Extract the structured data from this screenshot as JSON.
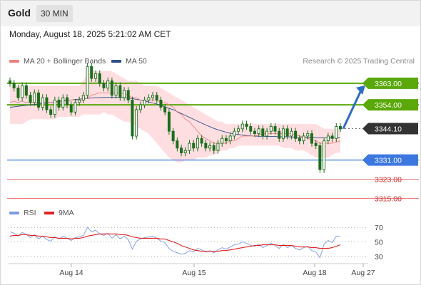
{
  "header": {
    "symbol": "Gold",
    "interval": "30 MIN"
  },
  "timestamp": "Monday, August 18, 2025 5:21:02 AM CET",
  "legend": {
    "ma20_label": "MA 20 + Bollinger Bands",
    "ma50_label": "MA 50",
    "rsi_label": "RSI",
    "rsi_ma_label": "9MA",
    "copyright": "Research © 2025 Trading Central"
  },
  "colors": {
    "ma20": "#f08080",
    "ma50": "#2d4f8c",
    "band_fill": "#ffd8dc",
    "candle": "#1c6e1c",
    "resistance": "#5aa80a",
    "support": "#3c78e0",
    "lower_support": "#f08080",
    "last_price": "#333333",
    "projection": "#2e6cc0",
    "rsi": "#7a9ae0",
    "rsi_ma": "#e02020"
  },
  "chart_data": [
    {
      "type": "candlestick",
      "title": "",
      "x_labels": [
        "Aug 14",
        "Aug 15",
        "Aug 18",
        "Aug 27"
      ],
      "ylim": [
        3311,
        3368
      ],
      "price_levels": [
        {
          "label": "3363.00",
          "value": 3363.0,
          "kind": "resistance"
        },
        {
          "label": "3354.00",
          "value": 3354.0,
          "kind": "resistance"
        },
        {
          "label": "3344.10",
          "value": 3344.1,
          "kind": "last_price"
        },
        {
          "label": "3331.00",
          "value": 3331.0,
          "kind": "support"
        },
        {
          "label": "3323.00",
          "value": 3323.0,
          "kind": "lower_support"
        },
        {
          "label": "3315.00",
          "value": 3315.0,
          "kind": "lower_support"
        }
      ],
      "close": [
        3363,
        3361,
        3357,
        3362,
        3358,
        3355,
        3359,
        3353,
        3357,
        3352,
        3350,
        3356,
        3353,
        3357,
        3354,
        3351,
        3355,
        3356,
        3358,
        3370,
        3365,
        3367,
        3363,
        3361,
        3364,
        3358,
        3362,
        3357,
        3360,
        3356,
        3341,
        3352,
        3354,
        3356,
        3357,
        3358,
        3356,
        3353,
        3351,
        3343,
        3339,
        3336,
        3334,
        3335,
        3338,
        3336,
        3340,
        3338,
        3336,
        3337,
        3335,
        3338,
        3340,
        3339,
        3341,
        3343,
        3344,
        3346,
        3345,
        3343,
        3342,
        3344,
        3341,
        3343,
        3345,
        3343,
        3340,
        3344,
        3341,
        3343,
        3340,
        3339,
        3341,
        3342,
        3338,
        3337,
        3327,
        3339,
        3341,
        3340,
        3345,
        3344
      ],
      "ma20": [
        3355,
        3355.5,
        3355,
        3355.5,
        3355,
        3355,
        3355,
        3355,
        3355,
        3355,
        3355,
        3355,
        3355,
        3356,
        3356,
        3356,
        3356,
        3356,
        3356,
        3357,
        3358,
        3358.5,
        3359,
        3359,
        3359,
        3359,
        3359,
        3359,
        3358.5,
        3358,
        3357,
        3357,
        3356,
        3356,
        3356,
        3356,
        3356,
        3355,
        3355,
        3354,
        3353,
        3351,
        3350,
        3348,
        3347,
        3345,
        3343,
        3341,
        3340,
        3339,
        3338,
        3338,
        3338,
        3338,
        3339,
        3339,
        3340,
        3341,
        3341,
        3341,
        3341,
        3341.5,
        3342,
        3342,
        3342,
        3342,
        3342,
        3342,
        3342,
        3342,
        3341.5,
        3341,
        3340.5,
        3340,
        3339.5,
        3339,
        3338,
        3338,
        3338,
        3338,
        3338.5,
        3339
      ],
      "ma50": [
        3353,
        3353.2,
        3353.4,
        3353.6,
        3353.8,
        3354,
        3354.2,
        3354.4,
        3354.6,
        3354.8,
        3355,
        3355.2,
        3355.4,
        3355.6,
        3355.8,
        3356,
        3356.2,
        3356.4,
        3356.5,
        3356.7,
        3356.9,
        3357,
        3357,
        3357.1,
        3357.1,
        3357.2,
        3357.2,
        3357.1,
        3357,
        3356.8,
        3356.6,
        3356.3,
        3356,
        3355.6,
        3355.2,
        3354.8,
        3354.3,
        3353.8,
        3353.2,
        3352.6,
        3352,
        3351.2,
        3350.4,
        3349.6,
        3348.8,
        3348,
        3347.2,
        3346.4,
        3345.6,
        3344.9,
        3344.2,
        3343.6,
        3343.1,
        3342.6,
        3342.2,
        3341.9,
        3341.6,
        3341.4,
        3341.2,
        3341.1,
        3341,
        3340.9,
        3340.9,
        3340.8,
        3340.8,
        3340.8,
        3340.7,
        3340.7,
        3340.7,
        3340.6,
        3340.6,
        3340.5,
        3340.5,
        3340.4,
        3340.4,
        3340.3,
        3340.3,
        3340.2,
        3340.2,
        3340.2,
        3340.2,
        3340.2
      ],
      "bb_upper": [
        3362,
        3362,
        3362,
        3362,
        3362,
        3362,
        3362,
        3362,
        3362,
        3362,
        3362,
        3362,
        3362,
        3362,
        3362,
        3362,
        3362,
        3362,
        3364,
        3367,
        3368,
        3368,
        3368,
        3368,
        3368,
        3368,
        3367,
        3366,
        3365,
        3364,
        3364,
        3364,
        3363,
        3362,
        3362,
        3362,
        3362,
        3361,
        3360,
        3359,
        3358,
        3357,
        3356,
        3355,
        3354,
        3353,
        3352,
        3351,
        3350,
        3349,
        3348,
        3347,
        3347,
        3346,
        3346,
        3346,
        3346,
        3346,
        3346,
        3346,
        3346,
        3346,
        3346,
        3346,
        3346,
        3346,
        3346,
        3346,
        3346,
        3346,
        3346,
        3346,
        3346,
        3346,
        3346,
        3346,
        3345,
        3344,
        3344,
        3344,
        3344,
        3344
      ],
      "bb_lower": [
        3346,
        3346,
        3346,
        3346,
        3347,
        3348,
        3348,
        3348,
        3348,
        3348,
        3348,
        3348,
        3349,
        3349,
        3349,
        3349,
        3349,
        3349,
        3350,
        3350,
        3350,
        3350,
        3350,
        3351,
        3350,
        3350,
        3349,
        3348,
        3347,
        3347,
        3346,
        3345,
        3344,
        3343,
        3342,
        3340,
        3338,
        3336,
        3334,
        3332,
        3331,
        3330,
        3330,
        3331,
        3331,
        3331,
        3332,
        3332,
        3332,
        3333,
        3333,
        3334,
        3335,
        3335,
        3336,
        3336,
        3337,
        3337,
        3337,
        3337,
        3337,
        3337,
        3337,
        3337,
        3337,
        3337,
        3337,
        3336,
        3336,
        3336,
        3335,
        3335,
        3335,
        3334,
        3333,
        3332,
        3332,
        3332,
        3332,
        3333,
        3334,
        3334
      ],
      "projection": {
        "from": 3344.1,
        "to": 3363.0
      }
    },
    {
      "type": "line",
      "title": "",
      "ylim": [
        20,
        80
      ],
      "yticks": [
        70,
        50,
        30
      ],
      "series": [
        {
          "name": "RSI",
          "values": [
            64,
            62,
            58,
            63,
            60,
            56,
            60,
            54,
            58,
            53,
            51,
            57,
            54,
            58,
            55,
            52,
            56,
            57,
            59,
            70,
            64,
            66,
            61,
            59,
            62,
            55,
            60,
            54,
            58,
            53,
            40,
            51,
            54,
            56,
            57,
            58,
            55,
            51,
            49,
            41,
            37,
            35,
            33,
            34,
            38,
            36,
            41,
            39,
            36,
            38,
            35,
            39,
            42,
            40,
            43,
            46,
            47,
            50,
            48,
            45,
            44,
            47,
            42,
            45,
            48,
            45,
            41,
            47,
            42,
            45,
            41,
            39,
            42,
            44,
            38,
            36,
            28,
            47,
            52,
            49,
            58,
            57
          ]
        },
        {
          "name": "9MA",
          "values": [
            58,
            59,
            59,
            60,
            60,
            59,
            59,
            58,
            58,
            57,
            56,
            56,
            55,
            55,
            55,
            54,
            55,
            55,
            56,
            58,
            59,
            60,
            61,
            61,
            61,
            61,
            61,
            60,
            60,
            59,
            57,
            56,
            55,
            55,
            55,
            55,
            55,
            54,
            54,
            52,
            50,
            48,
            45,
            43,
            41,
            39,
            38,
            37,
            37,
            37,
            37,
            37,
            38,
            38,
            39,
            40,
            41,
            42,
            43,
            44,
            45,
            45,
            46,
            46,
            46,
            46,
            45,
            45,
            45,
            45,
            44,
            43,
            43,
            43,
            42,
            42,
            41,
            41,
            41,
            42,
            44,
            46
          ]
        }
      ]
    }
  ]
}
